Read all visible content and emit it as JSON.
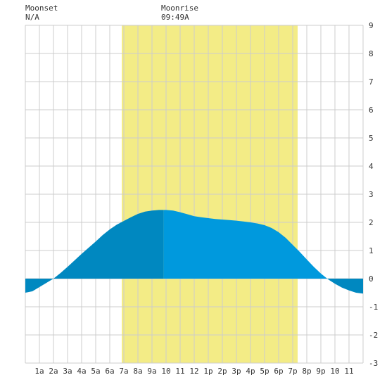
{
  "header": {
    "moonset_label": "Moonset",
    "moonset_value": "N/A",
    "moonrise_label": "Moonrise",
    "moonrise_value": "09:49A"
  },
  "colors": {
    "daylight": "#f3ec86",
    "tide_day": "#0099dd",
    "tide_night": "#0088c0",
    "grid": "#cccccc",
    "plot_bg": "#ffffff"
  },
  "chart_data": {
    "type": "area",
    "xlabel": "",
    "ylabel": "",
    "xlim": [
      0,
      24
    ],
    "ylim": [
      -3,
      9
    ],
    "x_ticks": [
      {
        "x": 1,
        "label": "1a"
      },
      {
        "x": 2,
        "label": "2a"
      },
      {
        "x": 3,
        "label": "3a"
      },
      {
        "x": 4,
        "label": "4a"
      },
      {
        "x": 5,
        "label": "5a"
      },
      {
        "x": 6,
        "label": "6a"
      },
      {
        "x": 7,
        "label": "7a"
      },
      {
        "x": 8,
        "label": "8a"
      },
      {
        "x": 9,
        "label": "9a"
      },
      {
        "x": 10,
        "label": "10"
      },
      {
        "x": 11,
        "label": "11"
      },
      {
        "x": 12,
        "label": "12"
      },
      {
        "x": 13,
        "label": "1p"
      },
      {
        "x": 14,
        "label": "2p"
      },
      {
        "x": 15,
        "label": "3p"
      },
      {
        "x": 16,
        "label": "4p"
      },
      {
        "x": 17,
        "label": "5p"
      },
      {
        "x": 18,
        "label": "6p"
      },
      {
        "x": 19,
        "label": "7p"
      },
      {
        "x": 20,
        "label": "8p"
      },
      {
        "x": 21,
        "label": "9p"
      },
      {
        "x": 22,
        "label": "10"
      },
      {
        "x": 23,
        "label": "11"
      }
    ],
    "y_ticks": [
      -3,
      -2,
      -1,
      0,
      1,
      2,
      3,
      4,
      5,
      6,
      7,
      8,
      9
    ],
    "daylight": {
      "start": 6.85,
      "end": 19.35
    },
    "moonrise_hour": 9.82,
    "series": [
      {
        "x": [
          0,
          0.5,
          1,
          1.5,
          2,
          2.5,
          3,
          3.5,
          4,
          4.5,
          5,
          5.5,
          6,
          6.5,
          7,
          7.5,
          8,
          8.5,
          9,
          9.5,
          10,
          10.5,
          11,
          11.5,
          12,
          12.5,
          13,
          13.5,
          14,
          14.5,
          15,
          15.5,
          16,
          16.5,
          17,
          17.5,
          18,
          18.5,
          19,
          19.5,
          20,
          20.5,
          21,
          21.5,
          22,
          22.5,
          23,
          23.5,
          24
        ],
        "y": [
          -0.5,
          -0.45,
          -0.3,
          -0.15,
          0.0,
          0.2,
          0.42,
          0.65,
          0.88,
          1.1,
          1.32,
          1.55,
          1.75,
          1.92,
          2.05,
          2.18,
          2.3,
          2.38,
          2.42,
          2.44,
          2.44,
          2.42,
          2.36,
          2.29,
          2.22,
          2.18,
          2.15,
          2.12,
          2.1,
          2.08,
          2.06,
          2.03,
          2.0,
          1.96,
          1.9,
          1.8,
          1.65,
          1.45,
          1.2,
          0.95,
          0.68,
          0.42,
          0.18,
          -0.02,
          -0.18,
          -0.32,
          -0.42,
          -0.5,
          -0.53
        ]
      }
    ]
  }
}
